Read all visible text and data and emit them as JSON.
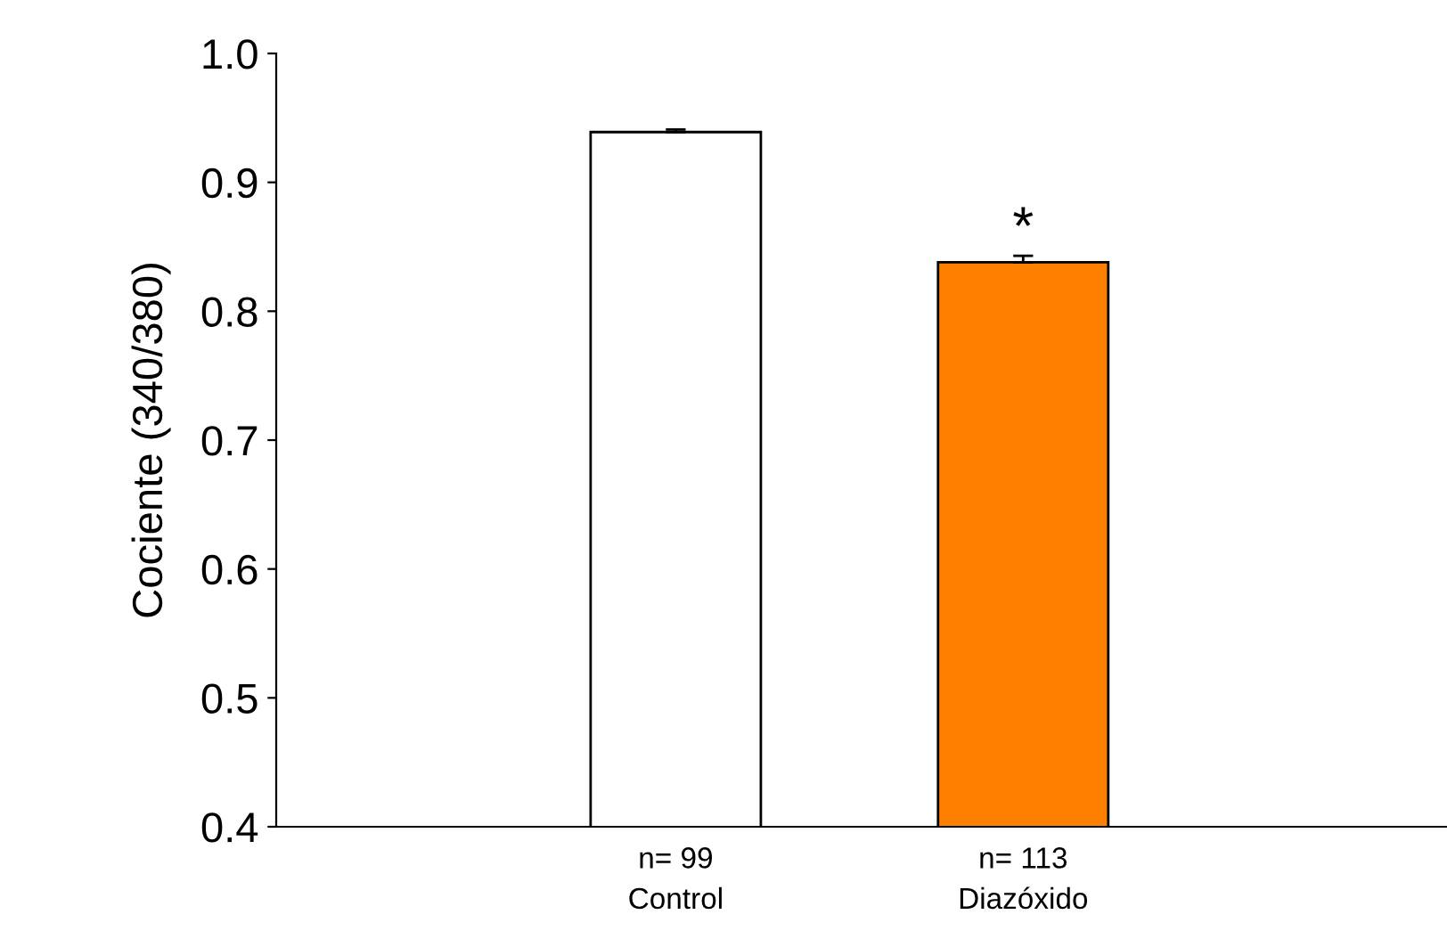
{
  "chart_data": {
    "type": "bar",
    "ylabel": "Cociente (340/380)",
    "categories": [
      "n= 99\nControl",
      "n= 113\nDiazóxido"
    ],
    "values": [
      0.939,
      0.838
    ],
    "errors": [
      [
        0.939,
        0.941
      ],
      [
        0.838,
        0.843
      ]
    ],
    "colors": [
      "#ffffff",
      "#ff8000"
    ],
    "ylim": [
      0.4,
      1.0
    ],
    "yticks": [
      0.4,
      0.5,
      0.6,
      0.7,
      0.8,
      0.9,
      {
        "value": 1.0,
        "label": "1.0"
      }
    ],
    "annotations": [
      {
        "text": "*",
        "x": "n= 113\nDiazóxido",
        "y": 0.843
      }
    ],
    "grid": false,
    "legend": false
  }
}
